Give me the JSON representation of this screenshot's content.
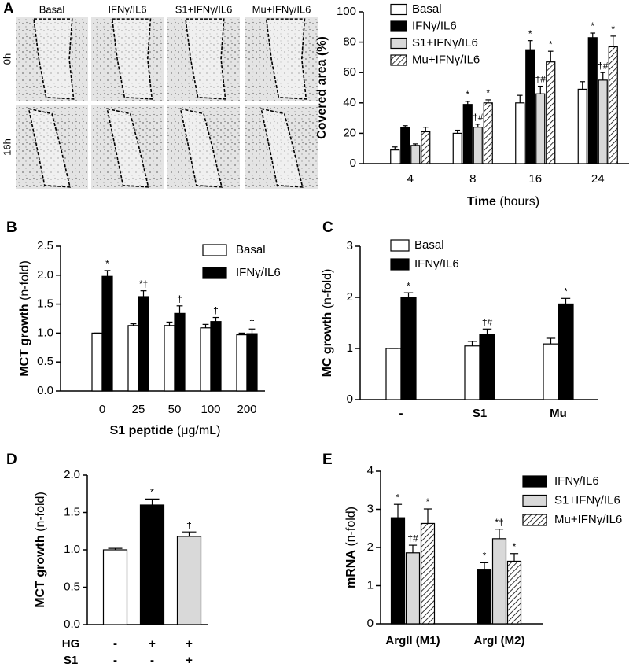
{
  "panel_labels": [
    "A",
    "B",
    "C",
    "D",
    "E"
  ],
  "micrographs": {
    "columns": [
      "Basal",
      "IFNγ/IL6",
      "S1+IFNγ/IL6",
      "Mu+IFNγ/IL6"
    ],
    "rows": [
      "0h",
      "16h"
    ]
  },
  "chart_data": [
    {
      "type": "bar",
      "categories": [
        "4",
        "8",
        "16",
        "24"
      ],
      "x_label": [
        "Time",
        "(hours)"
      ],
      "y_label": [
        "Covered area (%)"
      ],
      "ylim": [
        0,
        100
      ],
      "yticks": [
        0,
        20,
        40,
        60,
        80,
        100
      ],
      "legend": "upper left",
      "series": [
        {
          "name": "Basal",
          "color": "#ffffff",
          "values": [
            9,
            20,
            40,
            49
          ],
          "errors": [
            2,
            2,
            5,
            5
          ],
          "annotations": [
            null,
            null,
            null,
            null
          ]
        },
        {
          "name": "IFNγ/IL6",
          "color": "#000000",
          "values": [
            24,
            39,
            75,
            83
          ],
          "errors": [
            1,
            2,
            6,
            3
          ],
          "annotations": [
            null,
            "*",
            "*",
            "*"
          ]
        },
        {
          "name": "S1+IFNγ/IL6",
          "color": "#d9d9d9",
          "values": [
            12,
            24,
            46,
            55
          ],
          "errors": [
            1,
            2,
            5,
            5
          ],
          "annotations": [
            null,
            "†#",
            "†#",
            "†#"
          ]
        },
        {
          "name": "Mu+IFNγ/IL6",
          "color": "#000000",
          "hatch": true,
          "values": [
            21,
            40,
            67,
            77
          ],
          "errors": [
            3,
            2,
            7,
            7
          ],
          "annotations": [
            null,
            "*",
            "*",
            "*"
          ]
        }
      ]
    },
    {
      "type": "bar",
      "categories": [
        "0",
        "25",
        "50",
        "100",
        "200"
      ],
      "x_label": [
        "S1 peptide",
        "(μg/mL)"
      ],
      "y_label": [
        "MCT growth",
        "(n-fold)"
      ],
      "ylim": [
        0,
        2.5
      ],
      "yticks": [
        {
          "value": 0,
          "label": "0.0"
        },
        0.5,
        {
          "value": 1,
          "label": "1.0"
        },
        1.5,
        {
          "value": 2,
          "label": "2.0"
        },
        2.5
      ],
      "legend": "upper right",
      "series": [
        {
          "name": "Basal",
          "color": "#ffffff",
          "values": [
            1.0,
            1.13,
            1.13,
            1.09,
            0.97
          ],
          "errors": [
            0,
            0.03,
            0.06,
            0.06,
            0.03
          ],
          "annotations": [
            null,
            null,
            null,
            null,
            null
          ]
        },
        {
          "name": "IFNγ/IL6",
          "color": "#000000",
          "values": [
            1.98,
            1.63,
            1.34,
            1.2,
            0.99
          ],
          "errors": [
            0.1,
            0.1,
            0.13,
            0.07,
            0.08
          ],
          "annotations": [
            "*",
            "*†",
            "†",
            "†",
            "†"
          ]
        }
      ]
    },
    {
      "type": "bar",
      "categories": [
        "-",
        "S1",
        "Mu"
      ],
      "y_label": [
        "MC growth",
        "(n-fold)"
      ],
      "ylim": [
        0,
        3
      ],
      "yticks": [
        0,
        1,
        2,
        3
      ],
      "legend": "upper left",
      "series": [
        {
          "name": "Basal",
          "color": "#ffffff",
          "values": [
            1.0,
            1.05,
            1.09
          ],
          "errors": [
            0,
            0.09,
            0.11
          ],
          "annotations": [
            null,
            null,
            null
          ]
        },
        {
          "name": "IFNγ/IL6",
          "color": "#000000",
          "values": [
            2.0,
            1.28,
            1.87
          ],
          "errors": [
            0.09,
            0.1,
            0.11
          ],
          "annotations": [
            "*",
            "†#",
            "*"
          ]
        }
      ]
    },
    {
      "type": "bar",
      "y_label": [
        "MCT growth",
        "(n-fold)"
      ],
      "ylim": [
        0,
        2
      ],
      "yticks": [
        {
          "value": 0,
          "label": "0.0"
        },
        0.5,
        {
          "value": 1,
          "label": "1.0"
        },
        1.5,
        {
          "value": 2,
          "label": "2.0"
        }
      ],
      "condition_rows": [
        {
          "name": "HG",
          "values": [
            "-",
            "+",
            "+"
          ]
        },
        {
          "name": "S1",
          "values": [
            "-",
            "-",
            "+"
          ]
        }
      ],
      "series": [
        {
          "colors": [
            "#ffffff",
            "#000000",
            "#d9d9d9"
          ],
          "values": [
            1.0,
            1.6,
            1.18
          ],
          "errors": [
            0.02,
            0.08,
            0.06
          ],
          "annotations": [
            null,
            "*",
            "†"
          ]
        }
      ]
    },
    {
      "type": "bar",
      "categories": [
        "ArgII (M1)",
        "ArgI (M2)"
      ],
      "y_label": [
        "mRNA",
        "(n-fold)"
      ],
      "ylim": [
        0,
        4
      ],
      "yticks": [
        0,
        1,
        2,
        3,
        4
      ],
      "legend": "right",
      "series": [
        {
          "name": "IFNγ/IL6",
          "color": "#000000",
          "values": [
            2.78,
            1.43
          ],
          "errors": [
            0.35,
            0.17
          ],
          "annotations": [
            "*",
            "*"
          ]
        },
        {
          "name": "S1+IFNγ/IL6",
          "color": "#d9d9d9",
          "values": [
            1.86,
            2.23
          ],
          "errors": [
            0.2,
            0.25
          ],
          "annotations": [
            "†#",
            "*†"
          ]
        },
        {
          "name": "Mu+IFNγ/IL6",
          "color": "#000000",
          "hatch": true,
          "values": [
            2.63,
            1.64
          ],
          "errors": [
            0.38,
            0.2
          ],
          "annotations": [
            "*",
            "*"
          ]
        }
      ]
    }
  ]
}
